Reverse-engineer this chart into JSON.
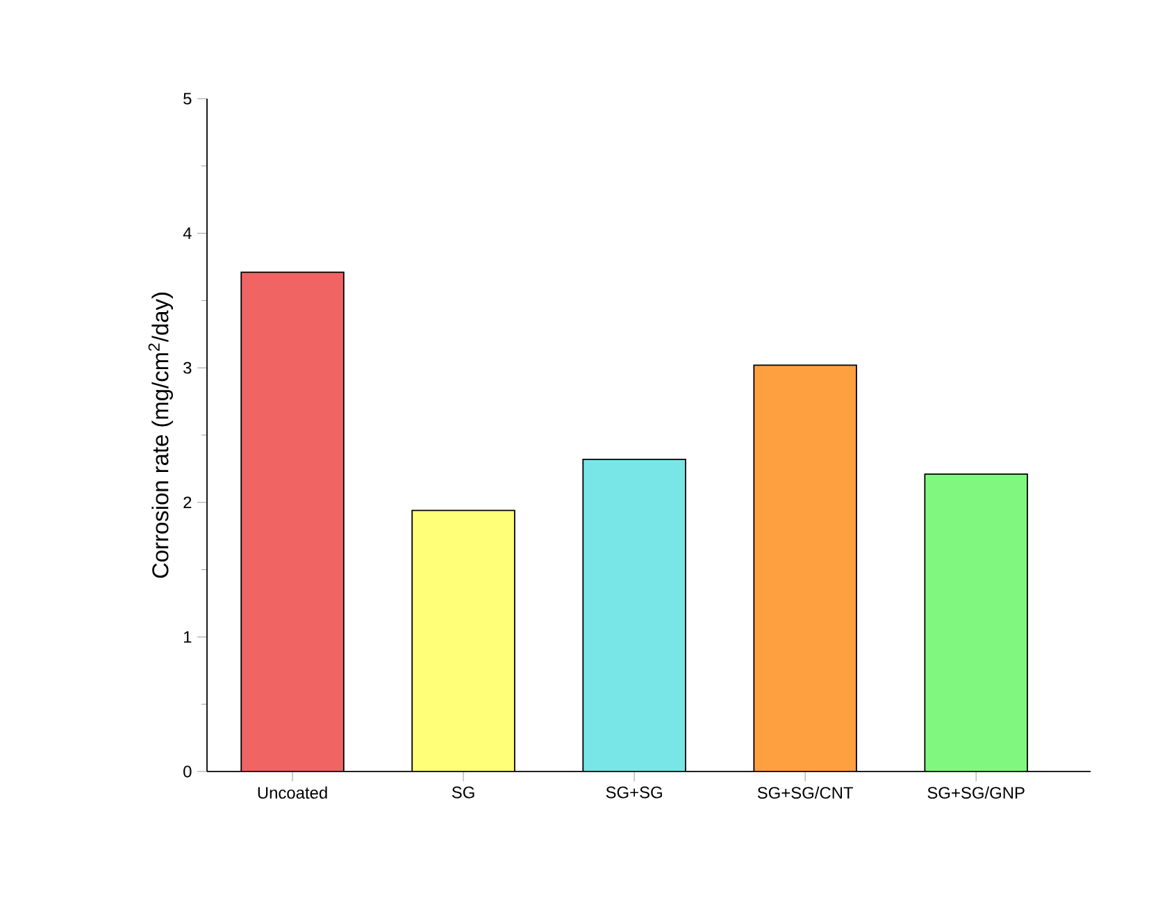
{
  "chart_data": {
    "type": "bar",
    "ylabel": "Corrosion rate (mg/cm$^{2}$/day)",
    "categories": [
      "Uncoated",
      "SG",
      "SG+SG",
      "SG+SG/CNT",
      "SG+SG/GNP"
    ],
    "values": [
      3.71,
      1.94,
      2.32,
      3.02,
      2.21
    ],
    "colors": [
      "#f06464",
      "#ffff78",
      "#78e6e6",
      "#ffa040",
      "#80f880"
    ],
    "ylim": [
      0,
      5
    ],
    "yticks": [
      0,
      1,
      2,
      3,
      4,
      5
    ]
  }
}
